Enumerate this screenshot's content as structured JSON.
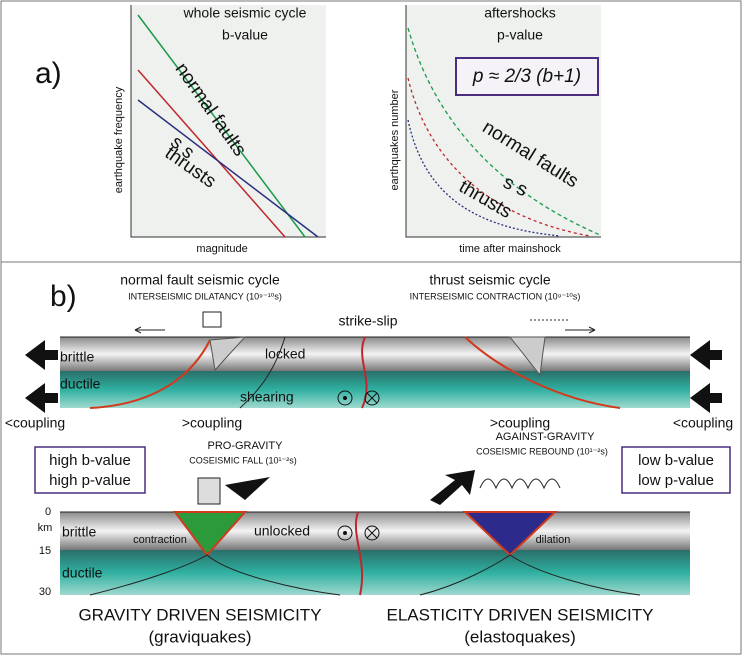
{
  "panel_a": {
    "label": "a)",
    "left_plot": {
      "title": "whole seismic cycle",
      "subtitle": "b-value",
      "y_label": "earthquake frequency",
      "x_label": "magnitude",
      "labels": [
        "normal faults",
        "s s",
        "thrusts"
      ]
    },
    "right_plot": {
      "title": "aftershocks",
      "subtitle": "p-value",
      "y_label": "earthquakes number",
      "x_label": "time after mainshock",
      "formula": "p ≈ 2/3 (b+1)",
      "labels": [
        "normal faults",
        "s s",
        "thrusts"
      ]
    }
  },
  "panel_b": {
    "label": "b)",
    "normal_title": "normal fault seismic cycle",
    "normal_sub": "INTERSEISMIC DILATANCY (10⁹⁻¹⁰s)",
    "thrust_title": "thrust seismic cycle",
    "thrust_sub": "INTERSEISMIC CONTRACTION (10⁹⁻¹⁰s)",
    "strike_slip": "strike-slip",
    "top_labels": [
      "brittle",
      "ductile",
      "locked",
      "shearing"
    ],
    "coupling": [
      "<coupling",
      ">coupling",
      ">coupling",
      "<coupling"
    ],
    "left_box": [
      "high b-value",
      "high p-value"
    ],
    "right_box": [
      "low b-value",
      "low p-value"
    ],
    "pro_gravity": "PRO-GRAVITY",
    "pro_sub": "COSEISMIC FALL (10¹⁻²s)",
    "against_gravity": "AGAINST-GRAVITY",
    "against_sub": "COSEISMIC REBOUND (10¹⁻²s)",
    "depth": [
      "0",
      "km",
      "15",
      "30"
    ],
    "bottom_labels": [
      "brittle",
      "ductile",
      "contraction",
      "unlocked",
      "dilation"
    ],
    "captions": [
      "GRAVITY DRIVEN SEISMICITY",
      "(graviquakes)",
      "ELASTICITY DRIVEN SEISMICITY",
      "(elastoquakes)"
    ]
  }
}
